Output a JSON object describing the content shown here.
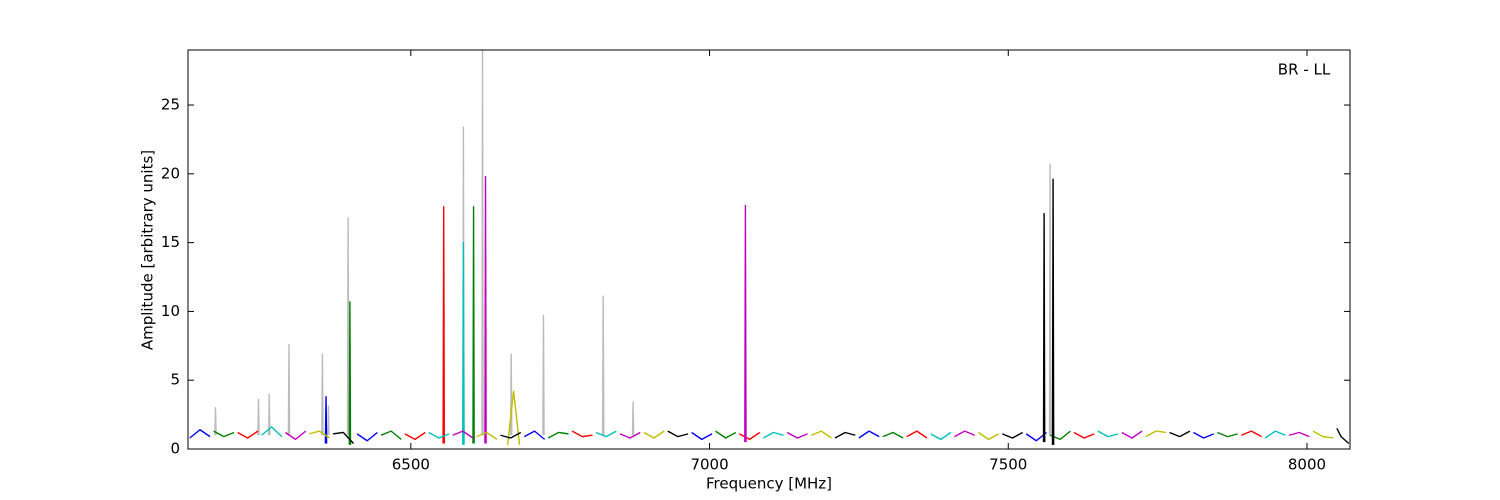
{
  "chart_data": {
    "type": "line",
    "xlabel": "Frequency [MHz]",
    "ylabel": "Amplitude [arbitrary units]",
    "annotation": "BR - LL",
    "xlim": [
      6127,
      8072
    ],
    "xticks": [
      6500,
      7000,
      7500,
      8000
    ],
    "ylim": [
      0,
      29
    ],
    "yticks": [
      0,
      5,
      10,
      15,
      20,
      25
    ],
    "series": [
      {
        "color": "#bbbbbb",
        "x": [
          6172,
          6173,
          6174,
          6180,
          6244,
          6245,
          6246,
          6250,
          6262,
          6263,
          6264,
          6270,
          6295,
          6296,
          6297,
          6300,
          6351,
          6352,
          6353,
          6357,
          6361,
          6362,
          6363,
          6370,
          6394,
          6395,
          6396,
          6400,
          6587,
          6588,
          6589,
          6600,
          6619,
          6620,
          6621,
          6640,
          6667,
          6668,
          6669,
          6690,
          6721,
          6722,
          6723,
          6750,
          6821,
          6822,
          6823,
          6850,
          6871,
          6872,
          6873,
          6900,
          7569,
          7570,
          7571
        ],
        "values": [
          1,
          3.0,
          1,
          null,
          1,
          3.6,
          1,
          null,
          1,
          4.0,
          1,
          null,
          1,
          7.6,
          1,
          null,
          1,
          6.9,
          1,
          null,
          1,
          3.1,
          1,
          null,
          1,
          16.8,
          1,
          null,
          1,
          23.4,
          1,
          null,
          1,
          29.0,
          1,
          null,
          1,
          6.9,
          1,
          null,
          1,
          9.7,
          1,
          null,
          1,
          11.1,
          1,
          null,
          1,
          3.4,
          1,
          null,
          1,
          20.7,
          1
        ]
      },
      {
        "color": "#0000ff",
        "x": [
          6130,
          6147,
          6164,
          6170,
          6357,
          6358,
          6359,
          6380,
          6410,
          6427,
          6444,
          6450,
          6690,
          6707,
          6724,
          6730,
          6970,
          6987,
          7004,
          7010,
          7250,
          7267,
          7284,
          7290,
          7530,
          7547,
          7564,
          7570,
          7810,
          7827,
          7844
        ],
        "values": [
          0.8,
          1.4,
          0.9,
          null,
          0.4,
          3.8,
          0.4,
          null,
          1.1,
          0.6,
          1.2,
          null,
          0.9,
          1.3,
          0.7,
          null,
          1.2,
          0.7,
          1.1,
          null,
          0.8,
          1.3,
          0.9,
          null,
          1.1,
          0.6,
          1.2,
          null,
          1.2,
          0.8,
          1.1
        ]
      },
      {
        "color": "#008000",
        "x": [
          6170,
          6187,
          6204,
          6210,
          6397,
          6398,
          6399,
          6420,
          6450,
          6467,
          6484,
          6490,
          6604,
          6605,
          6606,
          6620,
          6730,
          6747,
          6764,
          6770,
          7010,
          7027,
          7044,
          7050,
          7290,
          7307,
          7324,
          7330,
          7570,
          7587,
          7604,
          7610,
          7850,
          7867,
          7884
        ],
        "values": [
          1.3,
          0.9,
          1.2,
          null,
          0.3,
          10.7,
          0.3,
          null,
          1.0,
          1.3,
          0.7,
          null,
          0.4,
          17.6,
          0.4,
          null,
          0.8,
          1.2,
          1.1,
          null,
          1.3,
          0.8,
          1.2,
          null,
          0.9,
          1.2,
          0.8,
          null,
          1.0,
          0.7,
          1.3,
          null,
          1.2,
          0.9,
          1.1
        ]
      },
      {
        "color": "#ff0000",
        "x": [
          6210,
          6227,
          6244,
          6250,
          6490,
          6507,
          6524,
          6530,
          6554,
          6555,
          6556,
          6560,
          6770,
          6787,
          6804,
          6810,
          7050,
          7067,
          7084,
          7090,
          7330,
          7347,
          7364,
          7370,
          7610,
          7627,
          7644,
          7650,
          7890,
          7907,
          7924
        ],
        "values": [
          1.2,
          0.8,
          1.3,
          null,
          1.1,
          0.7,
          1.2,
          null,
          0.4,
          17.6,
          0.4,
          null,
          1.3,
          0.9,
          1.0,
          null,
          1.1,
          0.7,
          1.2,
          null,
          0.9,
          1.3,
          0.8,
          null,
          1.2,
          0.8,
          1.1,
          null,
          1.0,
          1.3,
          0.9
        ]
      },
      {
        "color": "#00bfbf",
        "x": [
          6250,
          6267,
          6284,
          6290,
          6530,
          6547,
          6564,
          6570,
          6587,
          6588,
          6589,
          6600,
          6810,
          6827,
          6844,
          6850,
          7090,
          7107,
          7124,
          7130,
          7370,
          7387,
          7404,
          7410,
          7650,
          7667,
          7684,
          7690,
          7930,
          7947,
          7964
        ],
        "values": [
          1.0,
          1.6,
          0.9,
          null,
          1.2,
          0.8,
          1.1,
          null,
          0.3,
          15.0,
          0.3,
          null,
          1.2,
          0.9,
          1.3,
          null,
          0.8,
          1.2,
          1.0,
          null,
          1.1,
          0.7,
          1.2,
          null,
          1.3,
          0.9,
          1.1,
          null,
          0.8,
          1.3,
          1.0
        ]
      },
      {
        "color": "#bf00bf",
        "x": [
          6290,
          6307,
          6324,
          6330,
          6570,
          6587,
          6604,
          6610,
          6624,
          6625,
          6626,
          6640,
          6850,
          6867,
          6884,
          6890,
          7059,
          7060,
          7061,
          7070,
          7130,
          7147,
          7164,
          7170,
          7410,
          7427,
          7444,
          7450,
          7690,
          7707,
          7724,
          7730,
          7970,
          7987,
          8004
        ],
        "values": [
          1.2,
          0.7,
          1.3,
          null,
          1.0,
          1.3,
          0.8,
          null,
          0.4,
          19.8,
          0.4,
          null,
          1.1,
          0.8,
          1.2,
          null,
          0.5,
          17.7,
          0.5,
          null,
          1.2,
          0.8,
          1.1,
          null,
          0.9,
          1.3,
          1.0,
          null,
          1.2,
          0.8,
          1.3,
          null,
          1.0,
          1.2,
          0.9
        ]
      },
      {
        "color": "#bfbf00",
        "x": [
          6330,
          6347,
          6364,
          6370,
          6610,
          6627,
          6644,
          6650,
          6662,
          6672,
          6682,
          6690,
          6890,
          6907,
          6924,
          6930,
          7170,
          7187,
          7204,
          7210,
          7450,
          7467,
          7484,
          7490,
          7730,
          7747,
          7764,
          7770,
          8010,
          8027,
          8044
        ],
        "values": [
          1.1,
          1.3,
          0.8,
          null,
          0.9,
          1.2,
          0.7,
          null,
          0.3,
          4.2,
          0.3,
          null,
          1.2,
          0.8,
          1.3,
          null,
          1.0,
          1.3,
          0.8,
          null,
          1.2,
          0.7,
          1.1,
          null,
          0.9,
          1.3,
          1.2,
          null,
          1.3,
          0.9,
          0.8
        ]
      },
      {
        "color": "#000000",
        "x": [
          6370,
          6387,
          6404,
          6410,
          6650,
          6667,
          6684,
          6690,
          6930,
          6947,
          6964,
          6970,
          7210,
          7227,
          7244,
          7250,
          7490,
          7507,
          7524,
          7530,
          7559,
          7560,
          7561,
          7565,
          7574,
          7575,
          7576,
          7580,
          7770,
          7787,
          7804,
          7810,
          8050,
          8057,
          8070
        ],
        "values": [
          1.1,
          1.2,
          0.4,
          null,
          1.0,
          0.8,
          1.2,
          null,
          1.3,
          0.9,
          1.1,
          null,
          0.8,
          1.2,
          1.0,
          null,
          1.1,
          0.8,
          1.2,
          null,
          0.5,
          17.1,
          0.5,
          null,
          0.3,
          19.6,
          0.3,
          null,
          1.2,
          0.9,
          1.3,
          null,
          1.5,
          0.9,
          0.4
        ]
      }
    ]
  }
}
